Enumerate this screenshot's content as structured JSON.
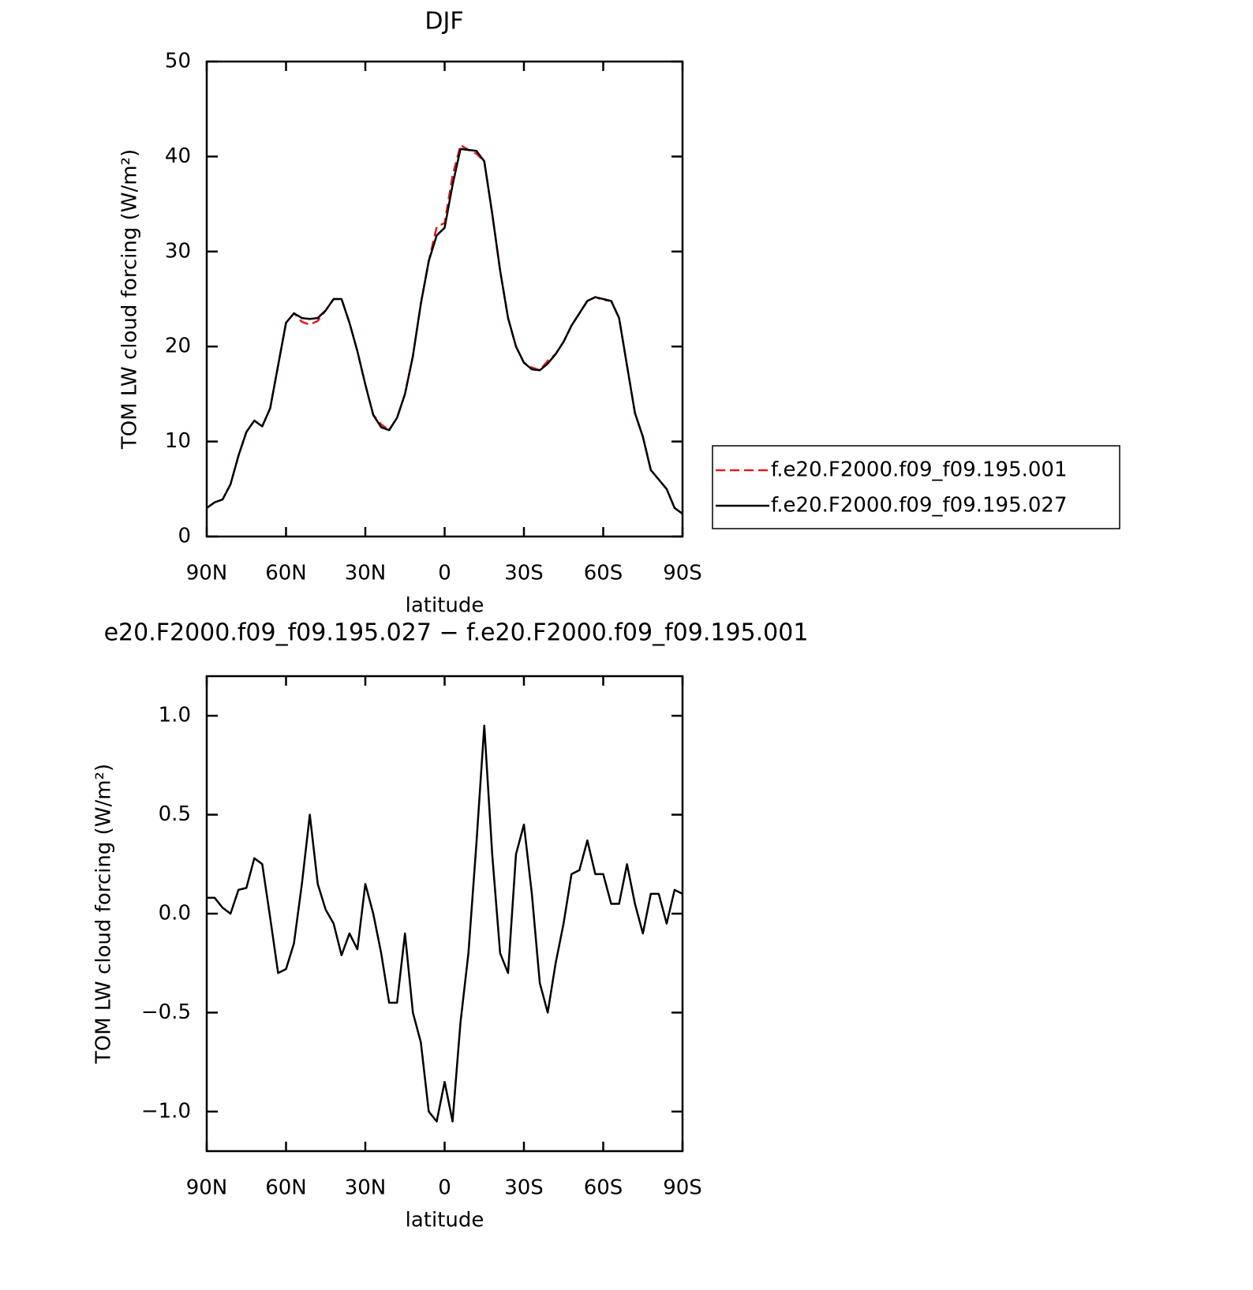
{
  "chart_data": [
    {
      "type": "line",
      "title": "DJF",
      "xlabel": "latitude",
      "ylabel": "TOM LW cloud forcing (W/m²)",
      "x": [
        90,
        87,
        84,
        81,
        78,
        75,
        72,
        69,
        66,
        63,
        60,
        57,
        54,
        51,
        48,
        45,
        42,
        39,
        36,
        33,
        30,
        27,
        24,
        21,
        18,
        15,
        12,
        9,
        6,
        3,
        0,
        -3,
        -6,
        -9,
        -12,
        -15,
        -18,
        -21,
        -24,
        -27,
        -30,
        -33,
        -36,
        -39,
        -42,
        -45,
        -48,
        -51,
        -54,
        -57,
        -60,
        -63,
        -66,
        -69,
        -72,
        -75,
        -78,
        -81,
        -84,
        -87,
        -90
      ],
      "series": [
        {
          "name": "f.e20.F2000.f09_f09.195.001",
          "color": "#e31a1c",
          "dashed": true,
          "values": [
            3.0,
            3.6,
            3.9,
            5.5,
            8.5,
            11.0,
            12.2,
            11.6,
            13.5,
            18.0,
            22.5,
            23.5,
            22.6,
            22.3,
            22.7,
            23.8,
            25.0,
            25.0,
            22.5,
            19.5,
            16.0,
            12.8,
            11.8,
            11.2,
            12.5,
            15.0,
            19.0,
            24.5,
            29.0,
            32.6,
            33.0,
            38.0,
            41.2,
            40.7,
            40.3,
            39.5,
            34.0,
            28.0,
            23.0,
            20.0,
            18.3,
            17.8,
            17.5,
            18.5,
            19.2,
            20.5,
            22.2,
            23.5,
            24.8,
            25.2,
            24.9,
            24.8,
            23.0,
            18.0,
            13.0,
            10.5,
            7.0,
            6.0,
            5.0,
            3.0,
            2.4
          ]
        },
        {
          "name": "f.e20.F2000.f09_f09.195.027",
          "color": "#000000",
          "dashed": false,
          "values": [
            3.0,
            3.6,
            3.9,
            5.5,
            8.5,
            11.0,
            12.2,
            11.6,
            13.5,
            18.0,
            22.5,
            23.5,
            23.0,
            22.9,
            23.0,
            23.8,
            25.0,
            25.0,
            22.5,
            19.5,
            16.0,
            12.8,
            11.5,
            11.2,
            12.5,
            15.0,
            19.0,
            24.5,
            29.0,
            31.7,
            32.5,
            37.0,
            40.8,
            40.7,
            40.6,
            39.5,
            34.0,
            28.0,
            23.0,
            20.0,
            18.3,
            17.6,
            17.5,
            18.2,
            19.2,
            20.5,
            22.2,
            23.5,
            24.8,
            25.2,
            25.0,
            24.8,
            23.0,
            18.0,
            13.0,
            10.5,
            7.0,
            6.0,
            5.0,
            3.0,
            2.4
          ]
        }
      ],
      "xlim": [
        90,
        -90
      ],
      "xticks": [
        {
          "value": 90,
          "label": "90N"
        },
        {
          "value": 60,
          "label": "60N"
        },
        {
          "value": 30,
          "label": "30N"
        },
        0,
        {
          "value": -30,
          "label": "30S"
        },
        {
          "value": -60,
          "label": "60S"
        },
        {
          "value": -90,
          "label": "90S"
        }
      ],
      "ylim": [
        0,
        50
      ],
      "yticks": [
        0,
        10,
        20,
        30,
        40,
        50
      ],
      "legend": "right"
    },
    {
      "type": "line",
      "title": "e20.F2000.f09_f09.195.027 − f.e20.F2000.f09_f09.195.001",
      "xlabel": "latitude",
      "ylabel": "TOM LW cloud forcing (W/m²)",
      "x": [
        90,
        87,
        84,
        81,
        78,
        75,
        72,
        69,
        66,
        63,
        60,
        57,
        54,
        51,
        48,
        45,
        42,
        39,
        36,
        33,
        30,
        27,
        24,
        21,
        18,
        15,
        12,
        9,
        6,
        3,
        0,
        -3,
        -6,
        -9,
        -12,
        -15,
        -18,
        -21,
        -24,
        -27,
        -30,
        -33,
        -36,
        -39,
        -42,
        -45,
        -48,
        -51,
        -54,
        -57,
        -60,
        -63,
        -66,
        -69,
        -72,
        -75,
        -78,
        -81,
        -84,
        -87,
        -90
      ],
      "values": [
        0.08,
        0.08,
        0.03,
        0.0,
        0.12,
        0.13,
        0.28,
        0.25,
        -0.02,
        -0.3,
        -0.28,
        -0.15,
        0.15,
        0.5,
        0.15,
        0.02,
        -0.05,
        -0.21,
        -0.1,
        -0.18,
        0.15,
        0.0,
        -0.2,
        -0.45,
        -0.45,
        -0.1,
        -0.5,
        -0.65,
        -1.0,
        -1.05,
        -0.85,
        -1.05,
        -0.55,
        -0.2,
        0.35,
        0.95,
        0.3,
        -0.2,
        -0.3,
        0.3,
        0.45,
        0.1,
        -0.35,
        -0.5,
        -0.25,
        -0.05,
        0.2,
        0.22,
        0.37,
        0.2,
        0.2,
        0.05,
        0.05,
        0.25,
        0.05,
        -0.1,
        0.1,
        0.1,
        -0.05,
        0.12,
        0.1
      ],
      "color": "#000000",
      "xlim": [
        90,
        -90
      ],
      "xticks": [
        {
          "value": 90,
          "label": "90N"
        },
        {
          "value": 60,
          "label": "60N"
        },
        {
          "value": 30,
          "label": "30N"
        },
        0,
        {
          "value": -30,
          "label": "30S"
        },
        {
          "value": -60,
          "label": "60S"
        },
        {
          "value": -90,
          "label": "90S"
        }
      ],
      "ylim": [
        -1.2,
        1.2
      ],
      "yticks": [
        {
          "value": -1.0,
          "label": "−1.0"
        },
        {
          "value": -0.5,
          "label": "−0.5"
        },
        {
          "value": 0.0,
          "label": "0.0"
        },
        {
          "value": 0.5,
          "label": "0.5"
        },
        {
          "value": 1.0,
          "label": "1.0"
        }
      ]
    }
  ]
}
